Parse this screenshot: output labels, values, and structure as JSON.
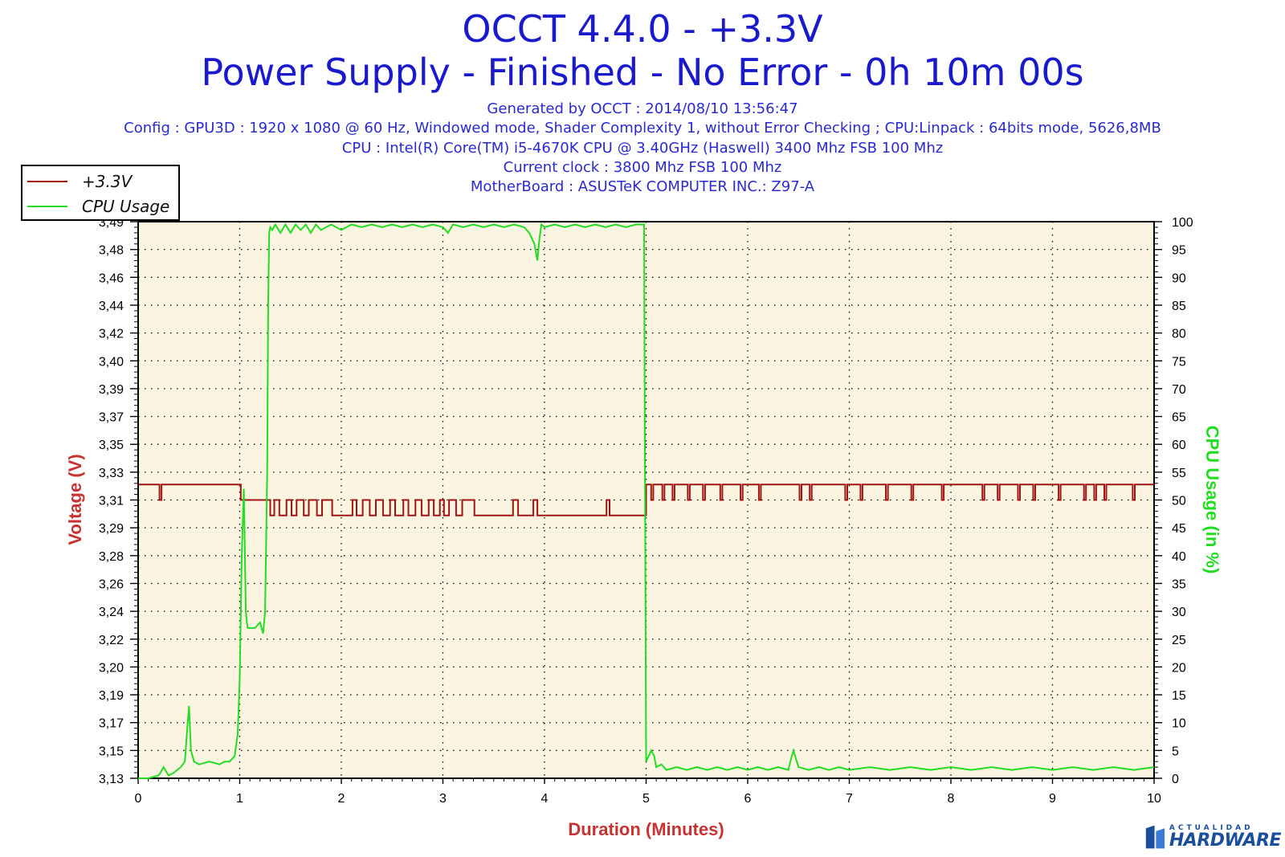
{
  "header": {
    "title": "OCCT 4.4.0 - +3.3V",
    "subtitle": "Power Supply - Finished - No Error - 0h 10m 00s",
    "generated": "Generated by OCCT : 2014/08/10 13:56:47",
    "config": "Config : GPU3D : 1920 x 1080 @ 60 Hz, Windowed mode, Shader Complexity 1, without Error Checking ; CPU:Linpack : 64bits mode, 5626,8MB",
    "cpu": "CPU : Intel(R) Core(TM) i5-4670K CPU @ 3.40GHz (Haswell) 3400 Mhz FSB 100 Mhz",
    "clock": "Current clock : 3800 Mhz FSB 100 Mhz",
    "motherboard": "MotherBoard : ASUSTeK COMPUTER INC.: Z97-A"
  },
  "legend": {
    "items": [
      {
        "label": "+3.3V",
        "color": "#a01414"
      },
      {
        "label": "CPU Usage",
        "color": "#22dd22"
      }
    ]
  },
  "logo": {
    "top": "ACTUALIDAD",
    "bottom": "HARDWARE"
  },
  "colors": {
    "plot_bg": "#faf4e1",
    "voltage": "#a01414",
    "cpu": "#22dd22",
    "title": "#1a1acc",
    "axis_label": "#c83232",
    "right_label": "#22dd22"
  },
  "chart_data": {
    "type": "line",
    "xlabel": "Duration (Minutes)",
    "ylabel": "Voltage (V)",
    "y2label": "CPU Usage (in %)",
    "xlim": [
      0,
      10
    ],
    "x_ticks": [
      "0",
      "1",
      "2",
      "3",
      "4",
      "5",
      "6",
      "7",
      "8",
      "9",
      "10"
    ],
    "ylim": [
      3.13,
      3.49
    ],
    "y_ticks": [
      "3,13",
      "3,15",
      "3,17",
      "3,19",
      "3,20",
      "3,22",
      "3,24",
      "3,26",
      "3,28",
      "3,29",
      "3,31",
      "3,33",
      "3,35",
      "3,37",
      "3,39",
      "3,40",
      "3,42",
      "3,44",
      "3,46",
      "3,48",
      "3,49"
    ],
    "y2lim": [
      0,
      100
    ],
    "y2_ticks": [
      "0",
      "5",
      "10",
      "15",
      "20",
      "25",
      "30",
      "35",
      "40",
      "45",
      "50",
      "55",
      "60",
      "65",
      "70",
      "75",
      "80",
      "85",
      "90",
      "95",
      "100"
    ],
    "grid": true,
    "legend_position": "top-left",
    "series": [
      {
        "name": "+3.3V",
        "axis": "left",
        "x": [
          0,
          0.2,
          0.21,
          0.22,
          0.23,
          1.0,
          1.01,
          1.29,
          1.3,
          1.33,
          1.34,
          1.38,
          1.39,
          1.45,
          1.46,
          1.5,
          1.51,
          1.55,
          1.56,
          1.62,
          1.63,
          1.67,
          1.68,
          1.75,
          1.76,
          1.8,
          1.81,
          1.9,
          1.91,
          2.1,
          2.11,
          2.14,
          2.15,
          2.2,
          2.21,
          2.27,
          2.28,
          2.33,
          2.34,
          2.4,
          2.41,
          2.47,
          2.48,
          2.52,
          2.53,
          2.6,
          2.61,
          2.65,
          2.66,
          2.72,
          2.73,
          2.78,
          2.79,
          2.85,
          2.86,
          2.9,
          2.91,
          2.96,
          2.97,
          3.0,
          3.01,
          3.05,
          3.06,
          3.12,
          3.13,
          3.18,
          3.19,
          3.3,
          3.31,
          3.68,
          3.69,
          3.73,
          3.74,
          3.88,
          3.89,
          3.92,
          3.93,
          4.6,
          4.61,
          4.63,
          4.64,
          4.99,
          5.0,
          5.04,
          5.05,
          5.07,
          5.15,
          5.16,
          5.18,
          5.25,
          5.26,
          5.28,
          5.4,
          5.41,
          5.43,
          5.55,
          5.56,
          5.58,
          5.72,
          5.73,
          5.75,
          5.92,
          5.93,
          5.95,
          6.1,
          6.11,
          6.13,
          6.5,
          6.51,
          6.53,
          6.6,
          6.61,
          6.63,
          6.95,
          6.96,
          6.98,
          7.1,
          7.11,
          7.13,
          7.35,
          7.36,
          7.38,
          7.6,
          7.61,
          7.63,
          7.9,
          7.91,
          7.93,
          8.3,
          8.31,
          8.33,
          8.45,
          8.46,
          8.48,
          8.65,
          8.66,
          8.68,
          8.8,
          8.81,
          8.83,
          9.05,
          9.06,
          9.08,
          9.3,
          9.31,
          9.33,
          9.4,
          9.41,
          9.43,
          9.5,
          9.51,
          9.53,
          9.78,
          9.79,
          9.81,
          10
        ],
        "values": [
          3.32,
          3.32,
          3.31,
          3.31,
          3.32,
          3.32,
          3.31,
          3.31,
          3.3,
          3.3,
          3.31,
          3.31,
          3.3,
          3.3,
          3.31,
          3.31,
          3.3,
          3.3,
          3.31,
          3.31,
          3.3,
          3.3,
          3.31,
          3.31,
          3.3,
          3.3,
          3.31,
          3.31,
          3.3,
          3.3,
          3.31,
          3.31,
          3.3,
          3.3,
          3.31,
          3.31,
          3.3,
          3.3,
          3.31,
          3.31,
          3.3,
          3.3,
          3.31,
          3.31,
          3.3,
          3.3,
          3.31,
          3.31,
          3.3,
          3.3,
          3.31,
          3.31,
          3.3,
          3.3,
          3.31,
          3.31,
          3.3,
          3.3,
          3.31,
          3.31,
          3.3,
          3.3,
          3.31,
          3.31,
          3.3,
          3.3,
          3.31,
          3.31,
          3.3,
          3.3,
          3.31,
          3.31,
          3.3,
          3.3,
          3.31,
          3.31,
          3.3,
          3.3,
          3.31,
          3.31,
          3.3,
          3.3,
          3.32,
          3.32,
          3.31,
          3.32,
          3.32,
          3.31,
          3.32,
          3.32,
          3.31,
          3.32,
          3.32,
          3.31,
          3.32,
          3.32,
          3.31,
          3.32,
          3.32,
          3.31,
          3.32,
          3.32,
          3.31,
          3.32,
          3.32,
          3.31,
          3.32,
          3.32,
          3.31,
          3.32,
          3.32,
          3.31,
          3.32,
          3.32,
          3.31,
          3.32,
          3.32,
          3.31,
          3.32,
          3.32,
          3.31,
          3.32,
          3.32,
          3.31,
          3.32,
          3.32,
          3.31,
          3.32,
          3.32,
          3.31,
          3.32,
          3.32,
          3.31,
          3.32,
          3.32,
          3.31,
          3.32,
          3.32,
          3.31,
          3.32,
          3.32,
          3.31,
          3.32,
          3.32,
          3.31,
          3.32,
          3.32,
          3.31,
          3.32,
          3.32,
          3.31,
          3.32,
          3.32,
          3.31,
          3.32,
          3.32
        ]
      },
      {
        "name": "CPU Usage",
        "axis": "right",
        "x": [
          0,
          0.1,
          0.2,
          0.22,
          0.25,
          0.3,
          0.35,
          0.42,
          0.46,
          0.48,
          0.5,
          0.52,
          0.55,
          0.6,
          0.7,
          0.8,
          0.85,
          0.9,
          0.95,
          0.98,
          1.0,
          1.02,
          1.04,
          1.06,
          1.07,
          1.08,
          1.1,
          1.15,
          1.2,
          1.23,
          1.25,
          1.27,
          1.28,
          1.29,
          1.3,
          1.32,
          1.35,
          1.4,
          1.45,
          1.5,
          1.55,
          1.6,
          1.65,
          1.7,
          1.75,
          1.8,
          1.85,
          1.9,
          2.0,
          2.1,
          2.2,
          2.3,
          2.4,
          2.5,
          2.6,
          2.7,
          2.8,
          2.9,
          3.0,
          3.05,
          3.1,
          3.2,
          3.3,
          3.4,
          3.5,
          3.6,
          3.7,
          3.8,
          3.85,
          3.9,
          3.93,
          3.95,
          3.97,
          4.0,
          4.1,
          4.2,
          4.3,
          4.4,
          4.5,
          4.6,
          4.7,
          4.8,
          4.9,
          4.98,
          4.99,
          5.0,
          5.05,
          5.08,
          5.1,
          5.15,
          5.2,
          5.3,
          5.4,
          5.5,
          5.6,
          5.7,
          5.8,
          5.9,
          6.0,
          6.1,
          6.2,
          6.3,
          6.4,
          6.42,
          6.45,
          6.5,
          6.6,
          6.7,
          6.8,
          6.9,
          7.0,
          7.2,
          7.4,
          7.6,
          7.8,
          8.0,
          8.2,
          8.4,
          8.6,
          8.8,
          9.0,
          9.2,
          9.4,
          9.6,
          9.8,
          10
        ],
        "values": [
          0,
          0,
          0.5,
          1,
          2,
          0.5,
          1,
          2,
          3,
          8,
          13,
          5,
          3,
          2.5,
          3,
          2.5,
          3,
          3,
          4,
          8,
          18,
          40,
          52,
          30,
          28,
          27,
          27,
          27,
          28,
          26,
          30,
          55,
          85,
          98,
          99,
          98.5,
          99.5,
          98,
          99.5,
          98,
          99.5,
          98.5,
          99.5,
          98,
          99.5,
          98.5,
          99,
          99.5,
          98.5,
          99.5,
          99,
          99.5,
          99,
          99.5,
          99,
          99.5,
          99,
          99.5,
          99,
          98,
          99.5,
          99,
          99.5,
          99,
          99.5,
          99,
          99.5,
          99,
          98,
          96,
          93,
          97,
          99.5,
          99,
          99.5,
          99,
          99.5,
          99,
          99.5,
          99,
          99.5,
          99,
          99.5,
          99.5,
          50,
          3,
          5,
          4,
          2,
          2.5,
          1.5,
          2,
          1.5,
          2,
          1.5,
          2,
          1.5,
          2,
          1.5,
          2,
          1.5,
          2,
          1.5,
          3,
          5,
          2,
          1.5,
          2,
          1.5,
          2,
          1.5,
          2,
          1.5,
          2,
          1.5,
          2,
          1.5,
          2,
          1.5,
          2,
          1.5,
          2,
          1.5,
          2,
          1.5,
          2
        ]
      }
    ]
  }
}
